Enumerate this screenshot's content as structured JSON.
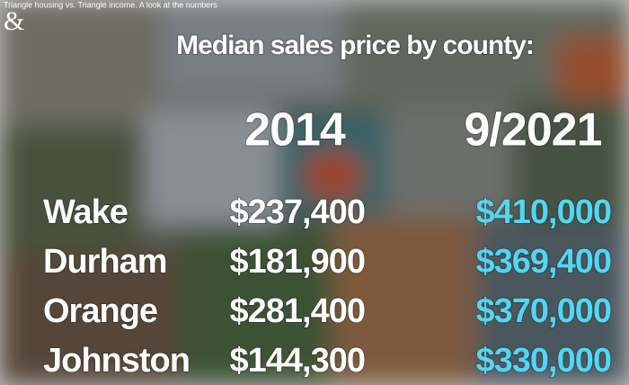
{
  "header": {
    "caption": "Triangle housing vs. Triangle income. A look at the numbers",
    "logo": "&",
    "title": "Median sales price by county:"
  },
  "table": {
    "columns": [
      "2014",
      "9/2021"
    ],
    "rows": [
      [
        "Wake",
        "$237,400",
        "$410,000"
      ],
      [
        "Durham",
        "$181,900",
        "$369,400"
      ],
      [
        "Orange",
        "$281,400",
        "$370,000"
      ],
      [
        "Johnston",
        "$144,300",
        "$330,000"
      ]
    ]
  }
}
